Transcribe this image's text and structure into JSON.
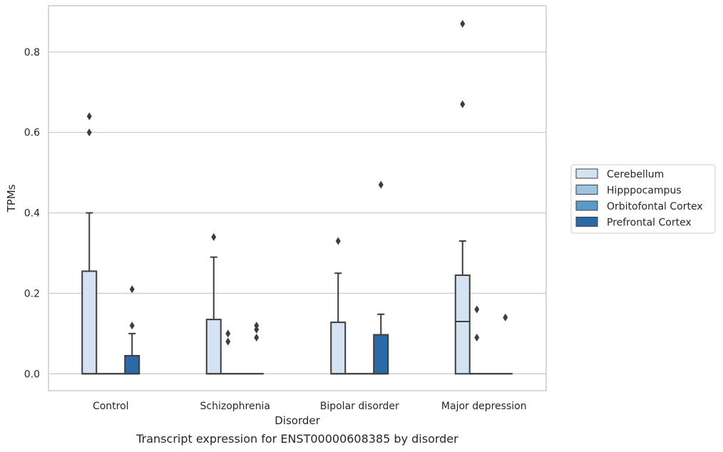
{
  "caption": "Transcript expression for ENST00000608385 by disorder",
  "chart_data": {
    "type": "box",
    "xlabel": "Disorder",
    "ylabel": "TPMs",
    "ylim": [
      -0.042,
      0.915
    ],
    "yticks": [
      0.0,
      0.2,
      0.4,
      0.6,
      0.8
    ],
    "ytick_labels": [
      "0.0",
      "0.2",
      "0.4",
      "0.6",
      "0.8"
    ],
    "grid": "horizontal",
    "legend_position": "right",
    "categories": [
      "Control",
      "Schizophrenia",
      "Bipolar disorder",
      "Major depression"
    ],
    "series": [
      {
        "name": "Cerebellum",
        "color": "#d4e2f1",
        "boxes": [
          {
            "q1": 0,
            "median": 0,
            "q3": 0.255,
            "whisker_low": 0,
            "whisker_high": 0.4,
            "outliers": [
              0.6,
              0.64
            ]
          },
          {
            "q1": 0,
            "median": 0,
            "q3": 0.135,
            "whisker_low": 0,
            "whisker_high": 0.29,
            "outliers": [
              0.34
            ]
          },
          {
            "q1": 0,
            "median": 0,
            "q3": 0.128,
            "whisker_low": 0,
            "whisker_high": 0.25,
            "outliers": [
              0.33
            ]
          },
          {
            "q1": 0,
            "median": 0.13,
            "q3": 0.245,
            "whisker_low": 0,
            "whisker_high": 0.33,
            "outliers": [
              0.67,
              0.87
            ]
          }
        ]
      },
      {
        "name": "Hipppocampus",
        "color": "#9cc3df",
        "boxes": [
          {
            "q1": 0,
            "median": 0,
            "q3": 0,
            "whisker_low": 0,
            "whisker_high": 0,
            "outliers": []
          },
          {
            "q1": 0,
            "median": 0,
            "q3": 0,
            "whisker_low": 0,
            "whisker_high": 0,
            "outliers": [
              0.08,
              0.1
            ]
          },
          {
            "q1": 0,
            "median": 0,
            "q3": 0,
            "whisker_low": 0,
            "whisker_high": 0,
            "outliers": []
          },
          {
            "q1": 0,
            "median": 0,
            "q3": 0,
            "whisker_low": 0,
            "whisker_high": 0,
            "outliers": [
              0.09,
              0.16
            ]
          }
        ]
      },
      {
        "name": "Orbitofontal Cortex",
        "color": "#5a9ac8",
        "boxes": [
          {
            "q1": 0,
            "median": 0,
            "q3": 0,
            "whisker_low": 0,
            "whisker_high": 0,
            "outliers": []
          },
          {
            "q1": 0,
            "median": 0,
            "q3": 0,
            "whisker_low": 0,
            "whisker_high": 0,
            "outliers": []
          },
          {
            "q1": 0,
            "median": 0,
            "q3": 0,
            "whisker_low": 0,
            "whisker_high": 0,
            "outliers": []
          },
          {
            "q1": 0,
            "median": 0,
            "q3": 0,
            "whisker_low": 0,
            "whisker_high": 0,
            "outliers": []
          }
        ]
      },
      {
        "name": "Prefrontal Cortex",
        "color": "#2b6aa9",
        "boxes": [
          {
            "q1": 0,
            "median": 0,
            "q3": 0.045,
            "whisker_low": 0,
            "whisker_high": 0.1,
            "outliers": [
              0.12,
              0.21
            ]
          },
          {
            "q1": 0,
            "median": 0,
            "q3": 0,
            "whisker_low": 0,
            "whisker_high": 0,
            "outliers": [
              0.09,
              0.11,
              0.12
            ]
          },
          {
            "q1": 0,
            "median": 0,
            "q3": 0.097,
            "whisker_low": 0,
            "whisker_high": 0.148,
            "outliers": [
              0.47
            ]
          },
          {
            "q1": 0,
            "median": 0,
            "q3": 0,
            "whisker_low": 0,
            "whisker_high": 0,
            "outliers": [
              0.14
            ]
          }
        ]
      }
    ]
  }
}
